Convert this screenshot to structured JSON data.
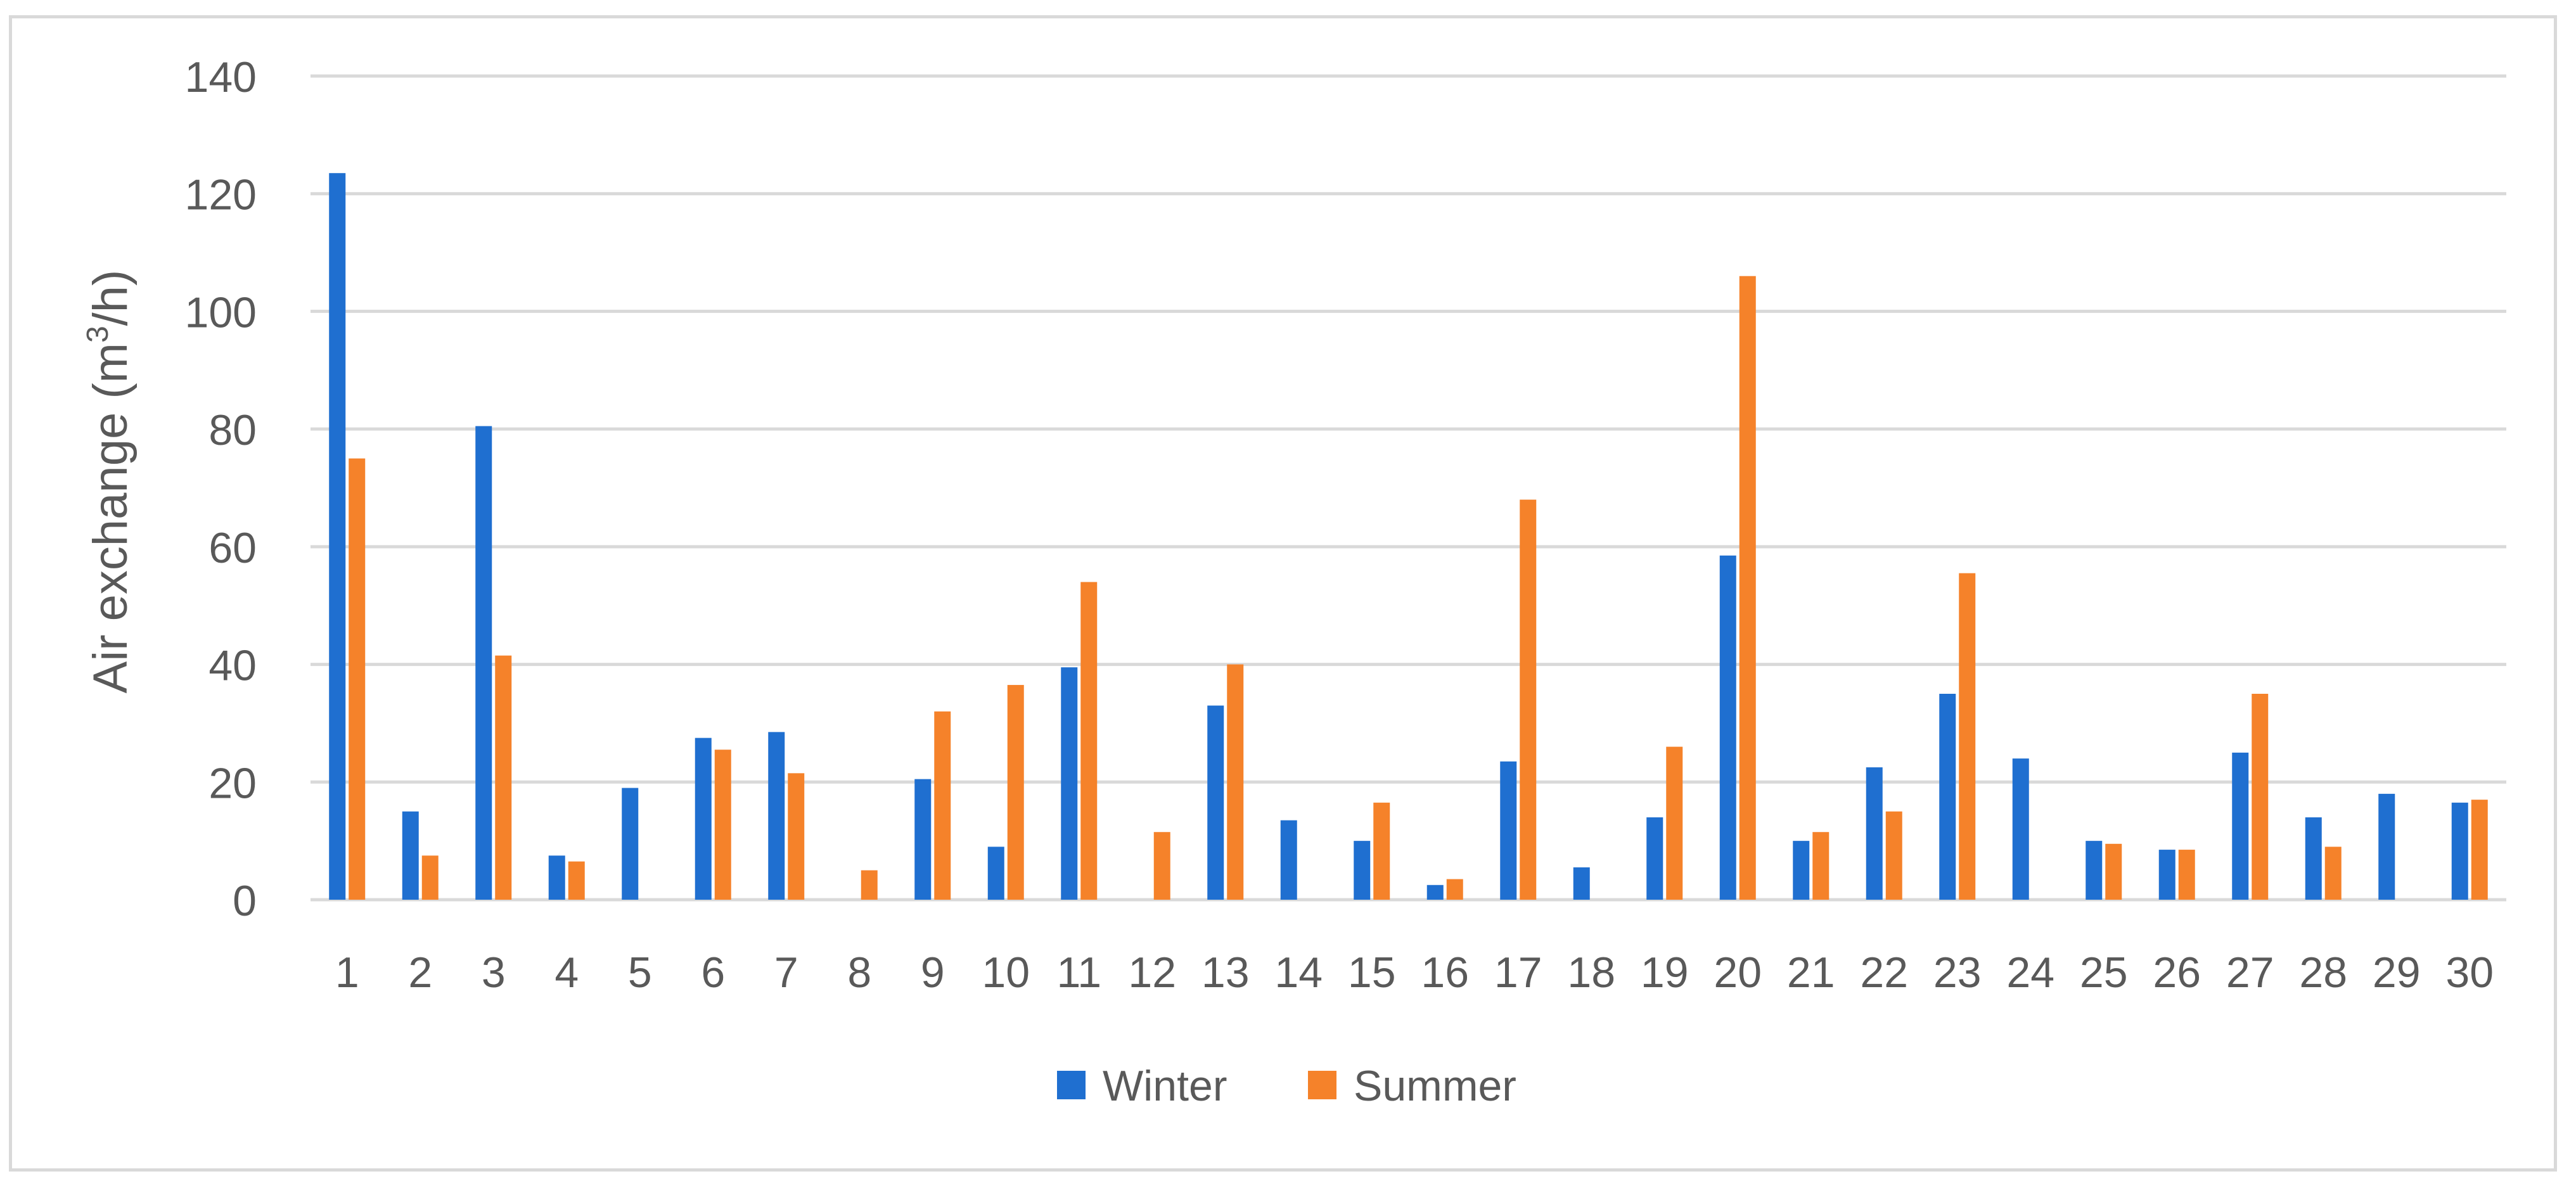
{
  "chart_data": {
    "type": "bar",
    "categories": [
      "1",
      "2",
      "3",
      "4",
      "5",
      "6",
      "7",
      "8",
      "9",
      "10",
      "11",
      "12",
      "13",
      "14",
      "15",
      "16",
      "17",
      "18",
      "19",
      "20",
      "21",
      "22",
      "23",
      "24",
      "25",
      "26",
      "27",
      "28",
      "29",
      "30"
    ],
    "series": [
      {
        "name": "Winter",
        "color": "#1f6fd0",
        "values": [
          123.5,
          15,
          80.5,
          7.5,
          19,
          27.5,
          28.5,
          0,
          20.5,
          9,
          39.5,
          0,
          33,
          13.5,
          10,
          2.5,
          23.5,
          5.5,
          14,
          58.5,
          10,
          22.5,
          35,
          24,
          10,
          8.5,
          25,
          14,
          18,
          16.5
        ]
      },
      {
        "name": "Summer",
        "color": "#f5822a",
        "values": [
          75,
          7.5,
          41.5,
          6.5,
          0,
          25.5,
          21.5,
          5,
          32,
          36.5,
          54,
          11.5,
          40,
          0,
          16.5,
          3.5,
          68,
          0,
          26,
          106,
          11.5,
          15,
          55.5,
          0,
          9.5,
          8.5,
          35,
          9,
          0,
          17
        ]
      }
    ],
    "yticks": [
      "0",
      "20",
      "40",
      "60",
      "80",
      "100",
      "120",
      "140"
    ],
    "ylabel": "Air exchange (m3/h)",
    "ylabel_base": "Air exchange (m",
    "ylabel_sup": "3",
    "ylabel_unit": "/h)",
    "ylim": [
      0,
      140
    ],
    "grid": true,
    "legend_position": "bottom"
  }
}
